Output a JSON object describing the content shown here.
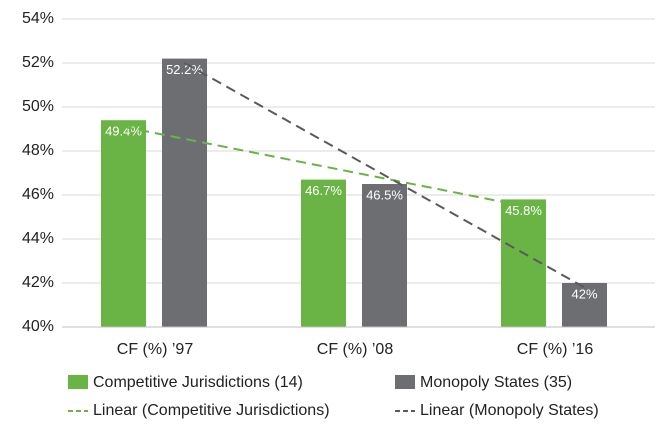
{
  "chart_data": {
    "type": "bar",
    "categories": [
      "CF (%) ’97",
      "CF (%) ’08",
      "CF (%) ’16"
    ],
    "series": [
      {
        "name": "Competitive Jurisdictions (14)",
        "color": "#6ab445",
        "values": [
          49.4,
          46.7,
          45.8
        ],
        "value_labels": [
          "49.4%",
          "46.7%",
          "45.8%"
        ]
      },
      {
        "name": "Monopoly States (35)",
        "color": "#6d6e71",
        "values": [
          52.2,
          46.5,
          42
        ],
        "value_labels": [
          "52.2%",
          "46.5%",
          "42%"
        ]
      }
    ],
    "trendlines": [
      {
        "name": "Linear (Competitive Jurisdictions)",
        "color": "#6ab445",
        "values": [
          49.1,
          47.3,
          45.5
        ]
      },
      {
        "name": "Linear (Monopoly States)",
        "color": "#5a5a5a",
        "values": [
          52.0,
          46.9,
          41.8
        ]
      }
    ],
    "ylim": [
      40,
      54
    ],
    "yticks": [
      {
        "value": 40,
        "label": "40%"
      },
      {
        "value": 42,
        "label": "42%"
      },
      {
        "value": 44,
        "label": "44%"
      },
      {
        "value": 46,
        "label": "46%"
      },
      {
        "value": 48,
        "label": "48%"
      },
      {
        "value": 50,
        "label": "50%"
      },
      {
        "value": 52,
        "label": "52%"
      },
      {
        "value": 54,
        "label": "54%"
      }
    ],
    "grid": true
  }
}
